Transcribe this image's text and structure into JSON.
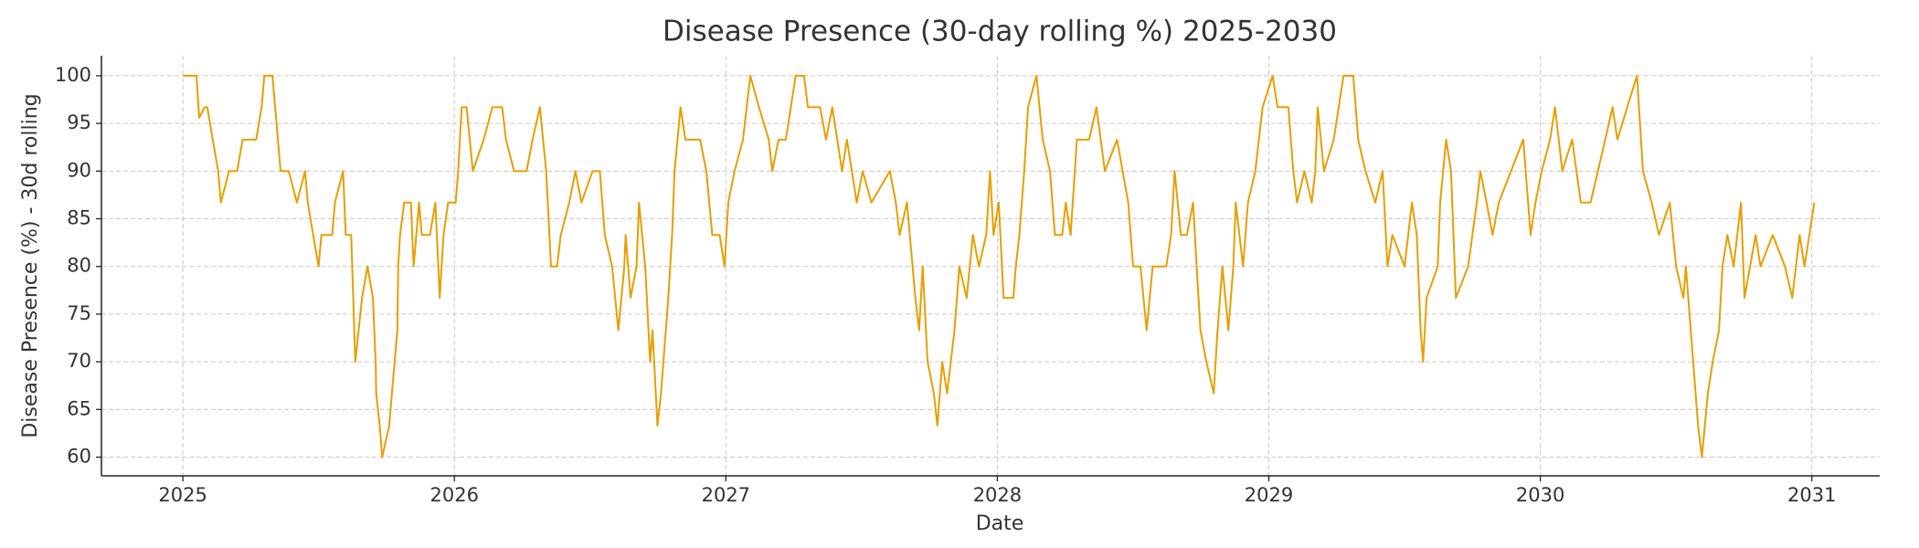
{
  "chart_data": {
    "type": "line",
    "title": "Disease Presence (30-day rolling %) 2025-2030",
    "xlabel": "Date",
    "ylabel": "Disease Presence (%) - 30d rolling",
    "color": "#E69F00",
    "grid": true,
    "xlim": [
      2024.7,
      2031.25
    ],
    "ylim": [
      58.04,
      102.1
    ],
    "xticks": [
      2025,
      2026,
      2027,
      2028,
      2029,
      2030,
      2031
    ],
    "yticks": [
      60,
      65,
      70,
      75,
      80,
      85,
      90,
      95,
      100
    ],
    "x": [
      2025,
      2025.05,
      2025.06,
      2025.08,
      2025.09,
      2025.11,
      2025.13,
      2025.14,
      2025.17,
      2025.2,
      2025.22,
      2025.25,
      2025.27,
      2025.29,
      2025.3,
      2025.33,
      2025.35,
      2025.36,
      2025.39,
      2025.42,
      2025.45,
      2025.46,
      2025.48,
      2025.5,
      2025.51,
      2025.55,
      2025.56,
      2025.59,
      2025.6,
      2025.62,
      2025.635,
      2025.66,
      2025.68,
      2025.7,
      2025.71,
      2025.712,
      2025.725,
      2025.734,
      2025.76,
      2025.77,
      2025.78,
      2025.79,
      2025.793,
      2025.8,
      2025.815,
      2025.84,
      2025.85,
      2025.87,
      2025.88,
      2025.91,
      2025.93,
      2025.946,
      2025.96,
      2025.977,
      2026.005,
      2026.014,
      2026.027,
      2026.045,
      2026.068,
      2026.108,
      2026.14,
      2026.176,
      2026.19,
      2026.22,
      2026.266,
      2026.288,
      2026.315,
      2026.338,
      2026.356,
      2026.378,
      2026.392,
      2026.423,
      2026.446,
      2026.468,
      2026.509,
      2026.536,
      2026.554,
      2026.581,
      2026.604,
      2026.626,
      2026.631,
      2026.649,
      2026.671,
      2026.68,
      2026.703,
      2026.721,
      2026.73,
      2026.748,
      2026.761,
      2026.788,
      2026.802,
      2026.811,
      2026.833,
      2026.851,
      2026.905,
      2026.928,
      2026.95,
      2026.977,
      2026.995,
      2027.009,
      2027.032,
      2027.063,
      2027.09,
      2027.122,
      2027.158,
      2027.171,
      2027.194,
      2027.221,
      2027.257,
      2027.288,
      2027.302,
      2027.347,
      2027.369,
      2027.392,
      2027.428,
      2027.446,
      2027.482,
      2027.504,
      2027.536,
      2027.604,
      2027.626,
      2027.64,
      2027.667,
      2027.698,
      2027.712,
      2027.725,
      2027.743,
      2027.766,
      2027.779,
      2027.797,
      2027.815,
      2027.842,
      2027.86,
      2027.887,
      2027.91,
      2027.932,
      2027.959,
      2027.973,
      2027.986,
      2028.005,
      2028.023,
      2028.059,
      2028.068,
      2028.081,
      2028.099,
      2028.113,
      2028.144,
      2028.167,
      2028.194,
      2028.212,
      2028.239,
      2028.252,
      2028.27,
      2028.293,
      2028.338,
      2028.365,
      2028.396,
      2028.441,
      2028.482,
      2028.5,
      2028.527,
      2028.55,
      2028.572,
      2028.622,
      2028.64,
      2028.653,
      2028.676,
      2028.698,
      2028.721,
      2028.734,
      2028.748,
      2028.77,
      2028.797,
      2028.811,
      2028.829,
      2028.851,
      2028.869,
      2028.878,
      2028.905,
      2028.923,
      2028.95,
      2028.977,
      2029.014,
      2029.032,
      2029.072,
      2029.09,
      2029.104,
      2029.131,
      2029.158,
      2029.171,
      2029.18,
      2029.203,
      2029.239,
      2029.275,
      2029.311,
      2029.329,
      2029.356,
      2029.392,
      2029.419,
      2029.437,
      2029.455,
      2029.5,
      2029.527,
      2029.545,
      2029.559,
      2029.568,
      2029.581,
      2029.622,
      2029.631,
      2029.653,
      2029.671,
      2029.68,
      2029.689,
      2029.734,
      2029.766,
      2029.779,
      2029.802,
      2029.824,
      2029.847,
      2029.892,
      2029.937,
      2029.955,
      2029.964,
      2029.982,
      2030.005,
      2030.036,
      2030.054,
      2030.081,
      2030.117,
      2030.149,
      2030.185,
      2030.212,
      2030.239,
      2030.266,
      2030.284,
      2030.32,
      2030.356,
      2030.378,
      2030.41,
      2030.437,
      2030.477,
      2030.5,
      2030.527,
      2030.536,
      2030.563,
      2030.581,
      2030.595,
      2030.617,
      2030.635,
      2030.658,
      2030.671,
      2030.689,
      2030.712,
      2030.739,
      2030.752,
      2030.793,
      2030.811,
      2030.856,
      2030.901,
      2030.928,
      2030.955,
      2030.973,
      2031.009
    ],
    "values": [
      100,
      100,
      95.6,
      96.7,
      96.7,
      93.3,
      90,
      86.7,
      90,
      90,
      93.3,
      93.3,
      93.3,
      96.7,
      100,
      100,
      93.3,
      90,
      90,
      86.7,
      90,
      86.7,
      83.3,
      80,
      83.3,
      83.3,
      86.7,
      90,
      83.3,
      83.3,
      70,
      76.7,
      80,
      76.7,
      70,
      66.7,
      63.3,
      60,
      63.3,
      66.7,
      70,
      73.3,
      80,
      83.3,
      86.7,
      86.7,
      80,
      86.7,
      83.3,
      83.3,
      86.7,
      76.7,
      83.3,
      86.7,
      86.7,
      90,
      96.7,
      96.7,
      90,
      93.3,
      96.7,
      96.7,
      93.3,
      90,
      90,
      93.3,
      96.7,
      90,
      80,
      80,
      83.3,
      86.7,
      90,
      86.7,
      90,
      90,
      83.3,
      80,
      73.3,
      80,
      83.3,
      76.7,
      80,
      86.7,
      80,
      70,
      73.3,
      63.3,
      66.7,
      76.7,
      83.3,
      90,
      96.7,
      93.3,
      93.3,
      90,
      83.3,
      83.3,
      80,
      86.7,
      90,
      93.3,
      100,
      96.7,
      93.3,
      90,
      93.3,
      93.3,
      100,
      100,
      96.7,
      96.7,
      93.3,
      96.7,
      90,
      93.3,
      86.7,
      90,
      86.7,
      90,
      86.7,
      83.3,
      86.7,
      76.7,
      73.3,
      80,
      70,
      66.7,
      63.3,
      70,
      66.7,
      73.3,
      80,
      76.7,
      83.3,
      80,
      83.3,
      90,
      83.3,
      86.7,
      76.7,
      76.7,
      80,
      83.3,
      90,
      96.7,
      100,
      93.3,
      90,
      83.3,
      83.3,
      86.7,
      83.3,
      93.3,
      93.3,
      96.7,
      90,
      93.3,
      86.7,
      80,
      80,
      73.3,
      80,
      80,
      83.3,
      90,
      83.3,
      83.3,
      86.7,
      80,
      73.3,
      70,
      66.7,
      73.3,
      80,
      73.3,
      80,
      86.7,
      80,
      86.7,
      90,
      96.7,
      100,
      96.7,
      96.7,
      90,
      86.7,
      90,
      86.7,
      90,
      96.7,
      90,
      93.3,
      100,
      100,
      93.3,
      90,
      86.7,
      90,
      80,
      83.3,
      80,
      86.7,
      83.3,
      73.3,
      70,
      76.7,
      80,
      86.7,
      93.3,
      90,
      83.3,
      76.7,
      80,
      86.7,
      90,
      86.7,
      83.3,
      86.7,
      90,
      93.3,
      86.7,
      83.3,
      86.7,
      90,
      93.3,
      96.7,
      90,
      93.3,
      86.7,
      86.7,
      90,
      93.3,
      96.7,
      93.3,
      96.7,
      100,
      90,
      86.7,
      83.3,
      86.7,
      80,
      76.7,
      80,
      70,
      63.3,
      60,
      66.7,
      70,
      73.3,
      80,
      83.3,
      80,
      86.7,
      76.7,
      83.3,
      80,
      83.3,
      80,
      76.7,
      83.3,
      80,
      86.7
    ]
  }
}
